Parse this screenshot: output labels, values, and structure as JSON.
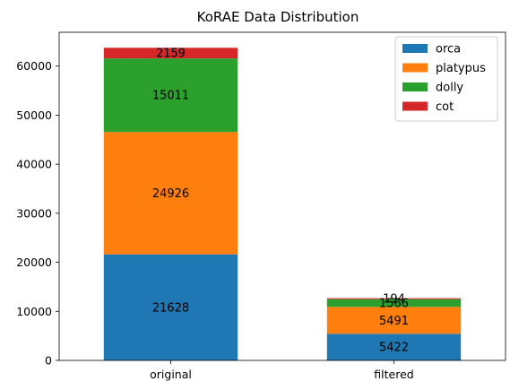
{
  "chart_data": {
    "type": "bar",
    "stacked": true,
    "title": "KoRAE Data Distribution",
    "xlabel": "",
    "ylabel": "",
    "categories": [
      "original",
      "filtered"
    ],
    "series": [
      {
        "name": "orca",
        "values": [
          21628,
          5422
        ],
        "color": "#1f77b4"
      },
      {
        "name": "platypus",
        "values": [
          24926,
          5491
        ],
        "color": "#ff7f0e"
      },
      {
        "name": "dolly",
        "values": [
          15011,
          1566
        ],
        "color": "#2ca02c"
      },
      {
        "name": "cot",
        "values": [
          2159,
          194
        ],
        "color": "#d62728"
      }
    ],
    "ylim": [
      0,
      66886
    ],
    "yticks": [
      0,
      10000,
      20000,
      30000,
      40000,
      50000,
      60000
    ],
    "grid": false,
    "legend": "top-right",
    "data_labels": true
  }
}
